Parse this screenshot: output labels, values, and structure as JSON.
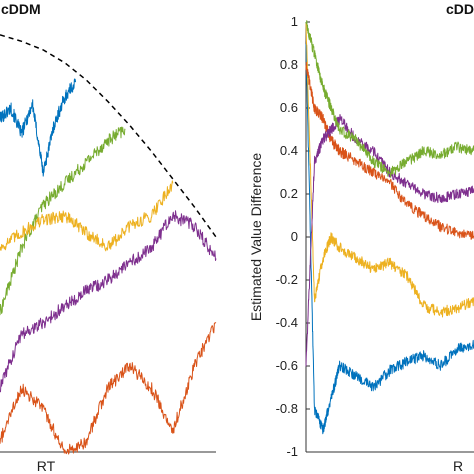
{
  "chart_data": [
    {
      "type": "line",
      "title": "cDDM",
      "xlabel": "RT",
      "ylabel": "",
      "grid": false,
      "colors": {
        "blue": "#0072BD",
        "orange": "#D95319",
        "yellow": "#EDB120",
        "purple": "#7E2F8E",
        "green": "#77AC30",
        "bound": "#000000"
      },
      "boundary": {
        "style": "dashed",
        "x": [
          0,
          0.1,
          0.2,
          0.3,
          0.4,
          0.5,
          0.6,
          0.7,
          0.8,
          0.9,
          1.0
        ],
        "y": [
          0.94,
          0.91,
          0.87,
          0.81,
          0.73,
          0.63,
          0.52,
          0.4,
          0.27,
          0.14,
          0.0
        ]
      },
      "series": [
        {
          "color": "blue",
          "x": [
            0,
            0.05,
            0.1,
            0.15,
            0.2,
            0.25,
            0.3,
            0.35
          ],
          "y": [
            0.55,
            0.6,
            0.48,
            0.62,
            0.3,
            0.52,
            0.65,
            0.72
          ]
        },
        {
          "color": "green",
          "x": [
            0,
            0.1,
            0.2,
            0.3,
            0.4,
            0.5,
            0.58
          ],
          "y": [
            -0.35,
            -0.05,
            0.15,
            0.25,
            0.35,
            0.45,
            0.5
          ]
        },
        {
          "color": "yellow",
          "x": [
            0,
            0.1,
            0.2,
            0.3,
            0.4,
            0.5,
            0.6,
            0.7,
            0.8
          ],
          "y": [
            -0.05,
            0.02,
            0.08,
            0.1,
            0.02,
            -0.05,
            0.05,
            0.1,
            0.25
          ]
        },
        {
          "color": "purple",
          "x": [
            0,
            0.1,
            0.2,
            0.3,
            0.4,
            0.5,
            0.6,
            0.7,
            0.8,
            0.9,
            1.0
          ],
          "y": [
            -0.7,
            -0.45,
            -0.4,
            -0.32,
            -0.25,
            -0.2,
            -0.12,
            -0.05,
            0.1,
            0.05,
            -0.1
          ]
        },
        {
          "color": "orange",
          "x": [
            0,
            0.1,
            0.2,
            0.3,
            0.4,
            0.5,
            0.6,
            0.7,
            0.8,
            0.9,
            1.0
          ],
          "y": [
            -0.95,
            -0.7,
            -0.8,
            -1.0,
            -0.95,
            -0.7,
            -0.6,
            -0.7,
            -0.9,
            -0.6,
            -0.4
          ]
        }
      ]
    },
    {
      "type": "line",
      "title": "cDD",
      "xlabel": "R",
      "ylabel": "Estimated Value Difference",
      "ylim": [
        -1,
        1
      ],
      "yticks": [
        "1",
        "0.8",
        "0.6",
        "0.4",
        "0.2",
        "0",
        "-0.2",
        "-0.4",
        "-0.6",
        "-0.8",
        "-1"
      ],
      "yticks_values": [
        1,
        0.8,
        0.6,
        0.4,
        0.2,
        0,
        -0.2,
        -0.4,
        -0.6,
        -0.8,
        -1
      ],
      "grid": false,
      "series": [
        {
          "color": "blue",
          "x": [
            0,
            0.05,
            0.1,
            0.15,
            0.2,
            0.3,
            0.4,
            0.5,
            0.6,
            0.7,
            0.8,
            0.9,
            1.0
          ],
          "y": [
            0.9,
            -0.8,
            -0.9,
            -0.75,
            -0.6,
            -0.65,
            -0.7,
            -0.62,
            -0.58,
            -0.55,
            -0.6,
            -0.52,
            -0.5
          ]
        },
        {
          "color": "yellow",
          "x": [
            0,
            0.05,
            0.1,
            0.15,
            0.2,
            0.3,
            0.4,
            0.5,
            0.6,
            0.7,
            0.8,
            0.9,
            1.0
          ],
          "y": [
            1.0,
            -0.3,
            -0.1,
            0.0,
            -0.05,
            -0.1,
            -0.15,
            -0.12,
            -0.18,
            -0.32,
            -0.35,
            -0.33,
            -0.3
          ]
        },
        {
          "color": "orange",
          "x": [
            0,
            0.05,
            0.1,
            0.15,
            0.2,
            0.3,
            0.4,
            0.5,
            0.6,
            0.7,
            0.8,
            0.9,
            1.0
          ],
          "y": [
            0.8,
            0.6,
            0.55,
            0.45,
            0.4,
            0.35,
            0.3,
            0.25,
            0.15,
            0.1,
            0.05,
            0.02,
            0.0
          ]
        },
        {
          "color": "purple",
          "x": [
            0,
            0.05,
            0.1,
            0.15,
            0.2,
            0.3,
            0.4,
            0.5,
            0.6,
            0.7,
            0.8,
            0.9,
            1.0
          ],
          "y": [
            -0.6,
            0.35,
            0.45,
            0.5,
            0.55,
            0.45,
            0.4,
            0.3,
            0.25,
            0.2,
            0.18,
            0.2,
            0.22
          ]
        },
        {
          "color": "green",
          "x": [
            0,
            0.05,
            0.1,
            0.15,
            0.2,
            0.3,
            0.4,
            0.5,
            0.6,
            0.7,
            0.8,
            0.9,
            1.0
          ],
          "y": [
            1.0,
            0.85,
            0.7,
            0.6,
            0.5,
            0.45,
            0.35,
            0.3,
            0.35,
            0.4,
            0.38,
            0.42,
            0.4
          ]
        }
      ]
    }
  ]
}
